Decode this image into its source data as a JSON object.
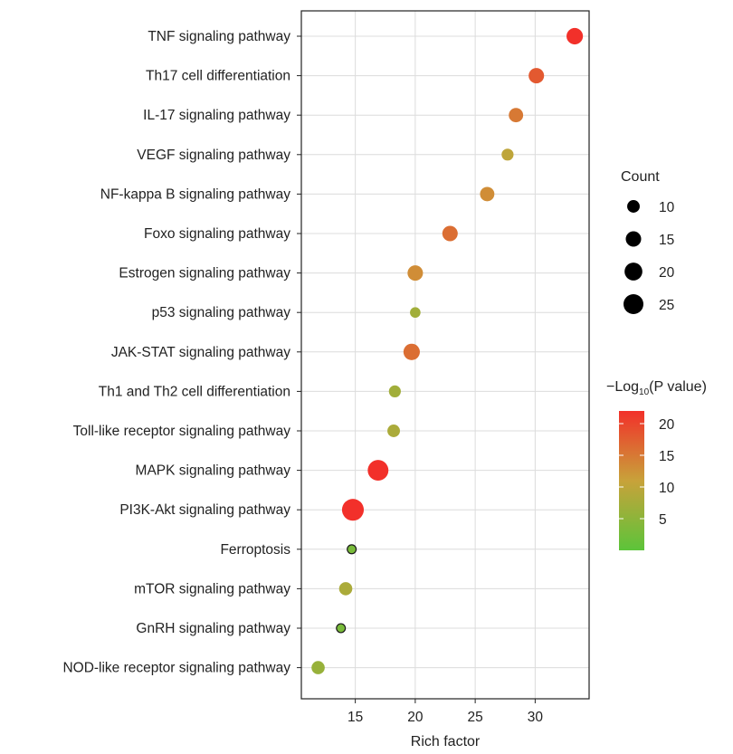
{
  "chart_data": {
    "type": "scatter",
    "title": "",
    "xlabel": "Rich factor",
    "ylabel": "",
    "xlim": [
      10.5,
      34.5
    ],
    "x_ticks": [
      15,
      20,
      25,
      30
    ],
    "grid": true,
    "legend_placement": "right",
    "categories": [
      "TNF signaling pathway",
      "Th17 cell differentiation",
      "IL-17 signaling pathway",
      "VEGF signaling pathway",
      "NF-kappa B signaling pathway",
      "Foxo signaling pathway",
      "Estrogen signaling pathway",
      "p53 signaling pathway",
      "JAK-STAT signaling pathway",
      "Th1 and Th2 cell differentiation",
      "Toll-like receptor signaling pathway",
      "MAPK signaling pathway",
      "PI3K-Akt signaling pathway",
      "Ferroptosis",
      "mTOR signaling pathway",
      "GnRH signaling pathway",
      "NOD-like receptor signaling pathway"
    ],
    "points": [
      {
        "pathway": "TNF signaling pathway",
        "rich_factor": 33.3,
        "count": 17,
        "neg_log10_p": 22
      },
      {
        "pathway": "Th17 cell differentiation",
        "rich_factor": 30.1,
        "count": 15,
        "neg_log10_p": 18
      },
      {
        "pathway": "IL-17 signaling pathway",
        "rich_factor": 28.4,
        "count": 13,
        "neg_log10_p": 15
      },
      {
        "pathway": "VEGF signaling pathway",
        "rich_factor": 27.7,
        "count": 9,
        "neg_log10_p": 10
      },
      {
        "pathway": "NF-kappa B signaling pathway",
        "rich_factor": 26.0,
        "count": 13,
        "neg_log10_p": 13
      },
      {
        "pathway": "Foxo signaling pathway",
        "rich_factor": 22.9,
        "count": 15,
        "neg_log10_p": 16
      },
      {
        "pathway": "Estrogen signaling pathway",
        "rich_factor": 20.0,
        "count": 15,
        "neg_log10_p": 13
      },
      {
        "pathway": "p53 signaling pathway",
        "rich_factor": 20.0,
        "count": 7,
        "neg_log10_p": 7
      },
      {
        "pathway": "JAK-STAT signaling pathway",
        "rich_factor": 19.7,
        "count": 17,
        "neg_log10_p": 16
      },
      {
        "pathway": "Th1 and Th2 cell differentiation",
        "rich_factor": 18.3,
        "count": 9,
        "neg_log10_p": 7
      },
      {
        "pathway": "Toll-like receptor signaling pathway",
        "rich_factor": 18.2,
        "count": 10,
        "neg_log10_p": 8
      },
      {
        "pathway": "MAPK signaling pathway",
        "rich_factor": 16.9,
        "count": 27,
        "neg_log10_p": 22
      },
      {
        "pathway": "PI3K-Akt signaling pathway",
        "rich_factor": 14.8,
        "count": 30,
        "neg_log10_p": 22
      },
      {
        "pathway": "Ferroptosis",
        "rich_factor": 14.7,
        "count": 5,
        "neg_log10_p": 3
      },
      {
        "pathway": "mTOR signaling pathway",
        "rich_factor": 14.2,
        "count": 11,
        "neg_log10_p": 8
      },
      {
        "pathway": "GnRH signaling pathway",
        "rich_factor": 13.8,
        "count": 5,
        "neg_log10_p": 3
      },
      {
        "pathway": "NOD-like receptor signaling pathway",
        "rich_factor": 11.9,
        "count": 11,
        "neg_log10_p": 6
      }
    ],
    "size_legend": {
      "title": "Count",
      "values": [
        10,
        15,
        20,
        25
      ]
    },
    "color_legend": {
      "title_prefix": "−Log",
      "title_sub": "10",
      "title_suffix": "(P value)",
      "ticks": [
        5,
        10,
        15,
        20
      ],
      "range": [
        0,
        22
      ],
      "low_color": "#5cc43a",
      "mid_color": "#c8a23a",
      "high_color": "#f2302a"
    },
    "grid_color": "#dcdcdc",
    "panel_border_color": "#222222"
  }
}
